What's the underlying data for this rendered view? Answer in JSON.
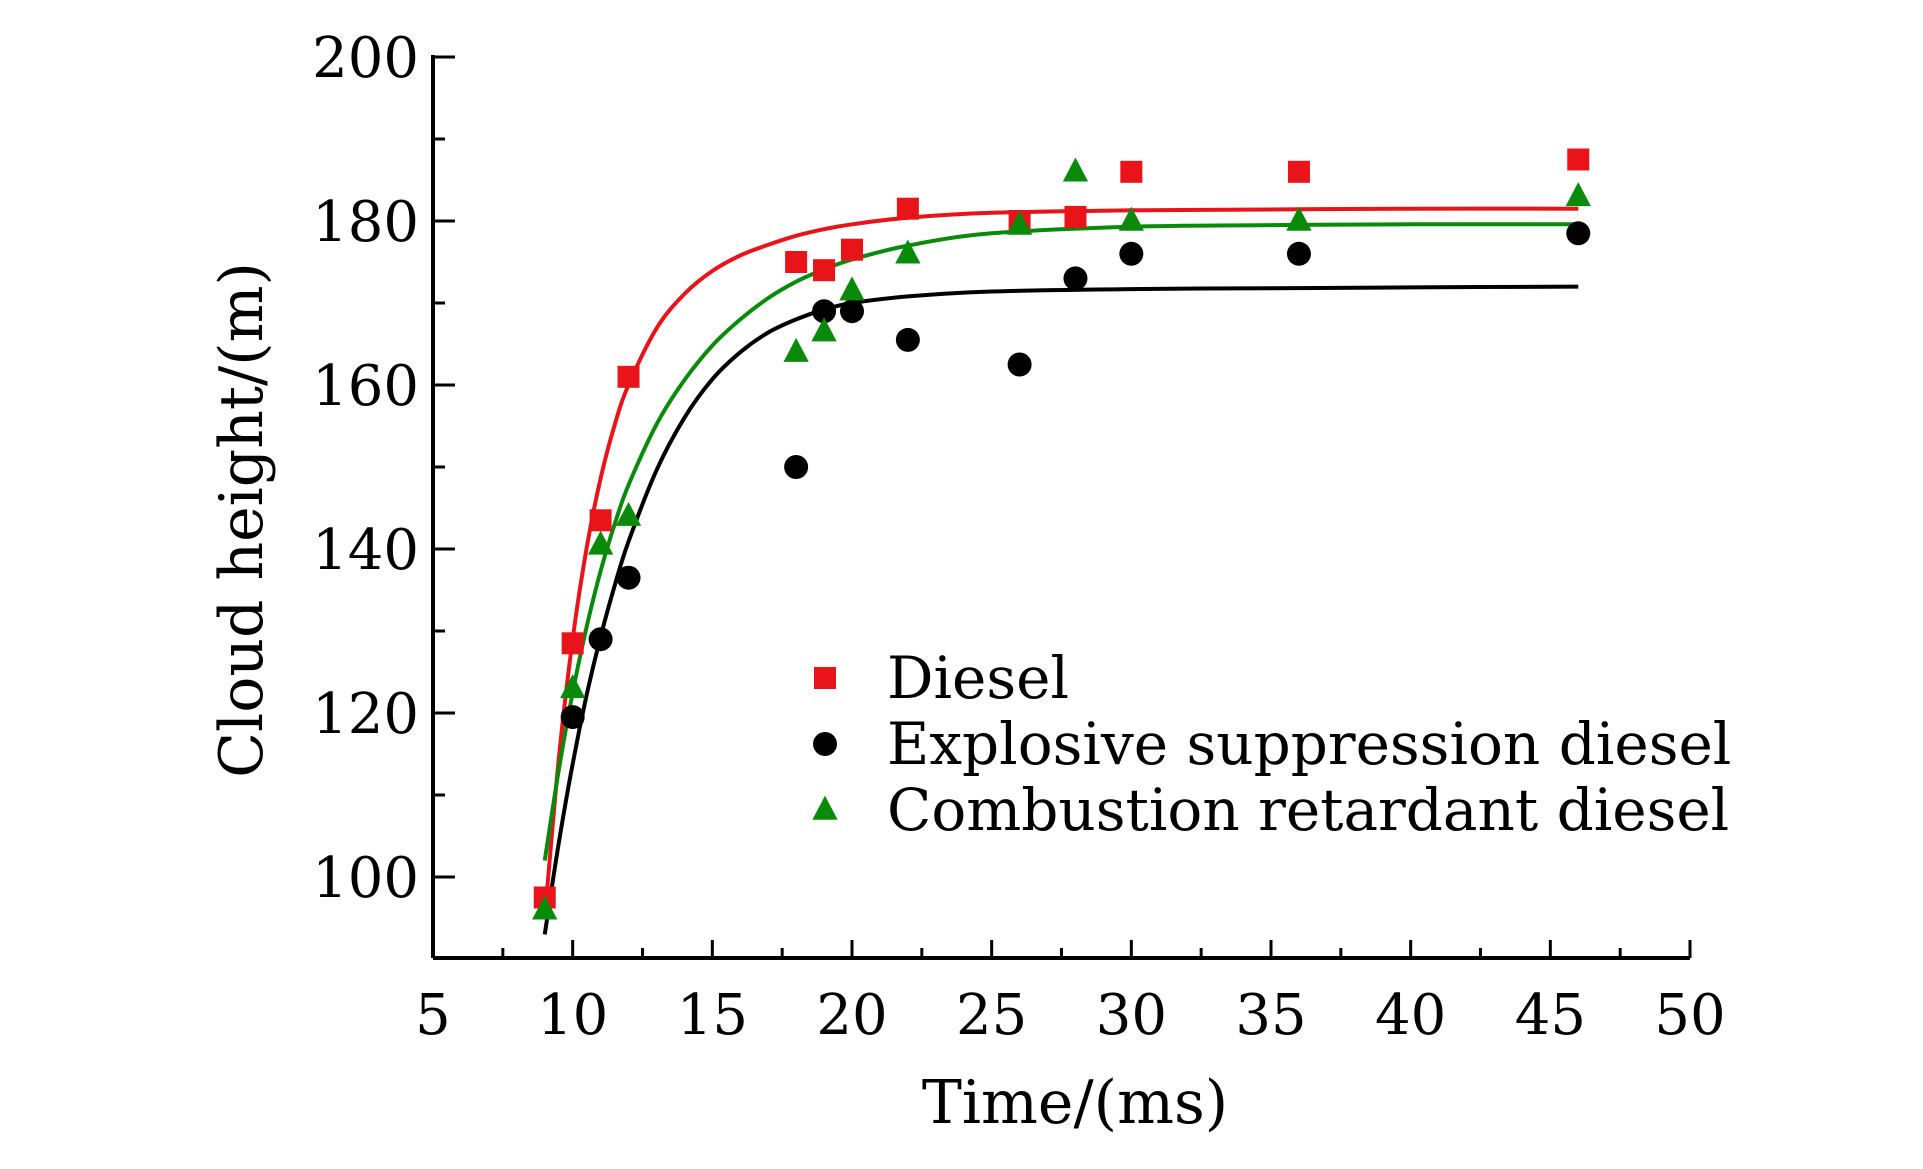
{
  "chart_data": {
    "type": "scatter",
    "title": "",
    "xlabel": "Time/(ms)",
    "ylabel": "Cloud height/(m)",
    "xlim": [
      5,
      50
    ],
    "ylim": [
      90,
      200
    ],
    "x_ticks": [
      5,
      10,
      15,
      20,
      25,
      30,
      35,
      40,
      45,
      50
    ],
    "y_ticks": [
      100,
      120,
      140,
      160,
      180,
      200
    ],
    "grid": false,
    "legend_position": "center-right",
    "series": [
      {
        "name": "Diesel",
        "marker": "square",
        "color": "#e8141a",
        "points": [
          [
            9,
            97.5
          ],
          [
            10,
            128.5
          ],
          [
            11,
            143.5
          ],
          [
            12,
            161
          ],
          [
            18,
            175
          ],
          [
            19,
            174
          ],
          [
            20,
            176.5
          ],
          [
            22,
            181.5
          ],
          [
            26,
            180
          ],
          [
            28,
            180.5
          ],
          [
            30,
            186
          ],
          [
            36,
            186
          ],
          [
            46,
            187.5
          ]
        ],
        "fit": [
          [
            9,
            95
          ],
          [
            9.5,
            114.3
          ],
          [
            10,
            129
          ],
          [
            10.5,
            140.1
          ],
          [
            11,
            148.6
          ],
          [
            11.5,
            155.1
          ],
          [
            12,
            160
          ],
          [
            13,
            166.9
          ],
          [
            14,
            171.1
          ],
          [
            15,
            173.9
          ],
          [
            16,
            175.8
          ],
          [
            17,
            177.1
          ],
          [
            18,
            178.2
          ],
          [
            19,
            179
          ],
          [
            20,
            179.6
          ],
          [
            22,
            180.4
          ],
          [
            25,
            181
          ],
          [
            30,
            181.3
          ],
          [
            35,
            181.4
          ],
          [
            40,
            181.5
          ],
          [
            46,
            181.5
          ]
        ]
      },
      {
        "name": "Explosive suppression diesel",
        "marker": "circle",
        "color": "#000000",
        "points": [
          [
            10,
            119.5
          ],
          [
            11,
            129
          ],
          [
            12,
            136.5
          ],
          [
            18,
            150
          ],
          [
            19,
            169
          ],
          [
            20,
            169
          ],
          [
            22,
            165.5
          ],
          [
            26,
            162.5
          ],
          [
            28,
            173
          ],
          [
            30,
            176
          ],
          [
            36,
            176
          ],
          [
            46,
            178.5
          ]
        ],
        "fit": [
          [
            9,
            93
          ],
          [
            9.5,
            104.1
          ],
          [
            10,
            113.8
          ],
          [
            10.5,
            122.2
          ],
          [
            11,
            129.3
          ],
          [
            11.5,
            135.5
          ],
          [
            12,
            140.9
          ],
          [
            13,
            149.6
          ],
          [
            14,
            156
          ],
          [
            15,
            160.7
          ],
          [
            16,
            164
          ],
          [
            17,
            166.4
          ],
          [
            18,
            168
          ],
          [
            19,
            169.2
          ],
          [
            20,
            170
          ],
          [
            22,
            170.8
          ],
          [
            25,
            171.4
          ],
          [
            30,
            171.7
          ],
          [
            35,
            171.8
          ],
          [
            40,
            171.9
          ],
          [
            46,
            172
          ]
        ]
      },
      {
        "name": "Combustion retardant diesel",
        "marker": "triangle",
        "color": "#0a8a0a",
        "points": [
          [
            9,
            96
          ],
          [
            10,
            123
          ],
          [
            11,
            140.5
          ],
          [
            12,
            144
          ],
          [
            18,
            164
          ],
          [
            19,
            166.5
          ],
          [
            20,
            171.5
          ],
          [
            22,
            176
          ],
          [
            26,
            179.5
          ],
          [
            28,
            186
          ],
          [
            30,
            180
          ],
          [
            36,
            180
          ],
          [
            46,
            183
          ]
        ],
        "fit": [
          [
            9,
            102
          ],
          [
            9.5,
            113
          ],
          [
            10,
            122.5
          ],
          [
            10.5,
            130.5
          ],
          [
            11,
            137.3
          ],
          [
            11.5,
            143
          ],
          [
            12,
            147.8
          ],
          [
            13,
            155.2
          ],
          [
            14,
            160.6
          ],
          [
            15,
            164.8
          ],
          [
            16,
            168
          ],
          [
            17,
            170.6
          ],
          [
            18,
            172.6
          ],
          [
            19,
            174.1
          ],
          [
            20,
            175.3
          ],
          [
            22,
            177
          ],
          [
            25,
            178.5
          ],
          [
            30,
            179.3
          ],
          [
            35,
            179.5
          ],
          [
            40,
            179.6
          ],
          [
            46,
            179.6
          ]
        ]
      }
    ]
  }
}
